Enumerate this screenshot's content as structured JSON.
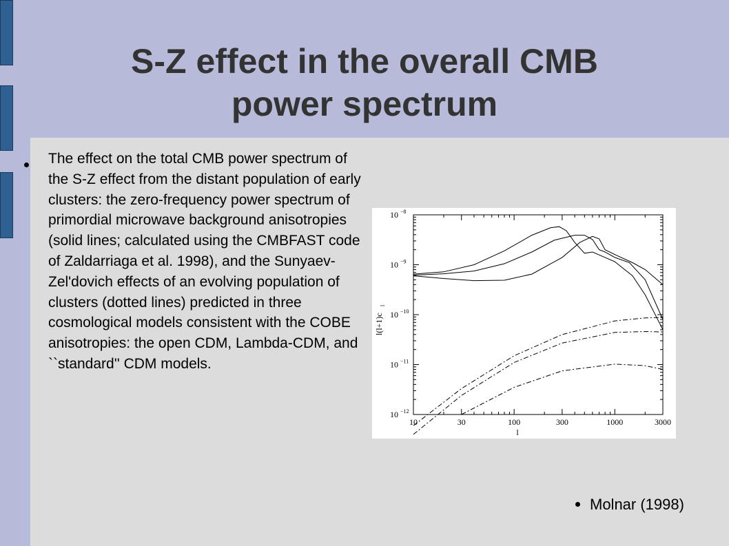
{
  "slide": {
    "title_line1": "S-Z effect in the overall CMB",
    "title_line2": "power spectrum",
    "body": "The effect on the total CMB power spectrum of the S-Z effect from the distant population of early clusters: the zero-frequency power spectrum of primordial microwave background anisotropies (solid lines; calculated using the CMBFAST code of Zaldarriaga et al. 1998), and the Sunyaev-Zel'dovich effects of an evolving population of clusters (dotted lines) predicted in three cosmological models consistent with the COBE anisotropies: the open CDM, Lambda-CDM, and ``standard'' CDM models.",
    "citation": "Molnar (1998)"
  },
  "colors": {
    "header_band": "#b7bbd9",
    "content_bg": "#dcdcdc",
    "tab_fill": "#2f6094",
    "title_text": "#333333"
  },
  "chart_data": {
    "type": "line",
    "x_scale": "log",
    "y_scale": "log",
    "xlim": [
      10,
      3000
    ],
    "ylim": [
      1e-12,
      1e-08
    ],
    "xlabel": "l",
    "ylabel": "l(l+1)c",
    "ylabel_sub": "l",
    "x_ticks": [
      "10",
      "30",
      "100",
      "300",
      "1000",
      "3000"
    ],
    "y_ticks": [
      {
        "base": "10",
        "exp": "−8"
      },
      {
        "base": "10",
        "exp": "−9"
      },
      {
        "base": "10",
        "exp": "−10"
      },
      {
        "base": "10",
        "exp": "−11"
      },
      {
        "base": "10",
        "exp": "−12"
      }
    ],
    "series": [
      {
        "style": "solid",
        "x": [
          10,
          20,
          40,
          80,
          150,
          230,
          280,
          330,
          400,
          500,
          600,
          800,
          1000,
          1500,
          2000,
          3000
        ],
        "y": [
          6.5e-10,
          7.2e-10,
          1e-09,
          1.9e-09,
          3.9e-09,
          5.5e-09,
          5.8e-09,
          4.8e-09,
          2.8e-09,
          1.7e-09,
          1.8e-09,
          1.4e-09,
          1.15e-09,
          6e-10,
          2.5e-10,
          5e-11
        ]
      },
      {
        "style": "solid",
        "x": [
          10,
          20,
          40,
          80,
          150,
          250,
          400,
          500,
          600,
          700,
          800,
          1000,
          1400,
          2000,
          3000
        ],
        "y": [
          6.2e-10,
          6.6e-10,
          7.5e-10,
          1.05e-09,
          1.8e-09,
          3.1e-09,
          3.9e-09,
          3.9e-09,
          3.2e-09,
          2e-09,
          1.8e-09,
          1.4e-09,
          1.1e-09,
          5e-10,
          8e-11
        ]
      },
      {
        "style": "solid",
        "x": [
          10,
          20,
          40,
          80,
          150,
          300,
          450,
          600,
          700,
          800,
          1000,
          1500,
          2000,
          3000
        ],
        "y": [
          6e-10,
          5.3e-10,
          4.8e-10,
          4.9e-10,
          6.5e-10,
          1.4e-09,
          2.8e-09,
          3.7e-09,
          3.3e-09,
          2e-09,
          1.6e-09,
          1.1e-09,
          8e-10,
          4e-10
        ]
      },
      {
        "style": "dashdot",
        "x": [
          10,
          30,
          100,
          300,
          1000,
          2000,
          3000
        ],
        "y": [
          6e-13,
          3.3e-12,
          1.5e-11,
          4e-11,
          7.5e-11,
          8.6e-11,
          8.8e-11
        ]
      },
      {
        "style": "dashdot",
        "x": [
          10,
          30,
          100,
          300,
          1000,
          2000,
          3000
        ],
        "y": [
          4e-13,
          2.4e-12,
          1.1e-11,
          2.7e-11,
          4.4e-11,
          4.6e-11,
          4.5e-11
        ]
      },
      {
        "style": "dashdot",
        "x": [
          30,
          100,
          300,
          1000,
          2000,
          3000
        ],
        "y": [
          1e-12,
          3.5e-12,
          7.5e-12,
          1.02e-11,
          9.5e-12,
          8e-12
        ]
      }
    ]
  }
}
